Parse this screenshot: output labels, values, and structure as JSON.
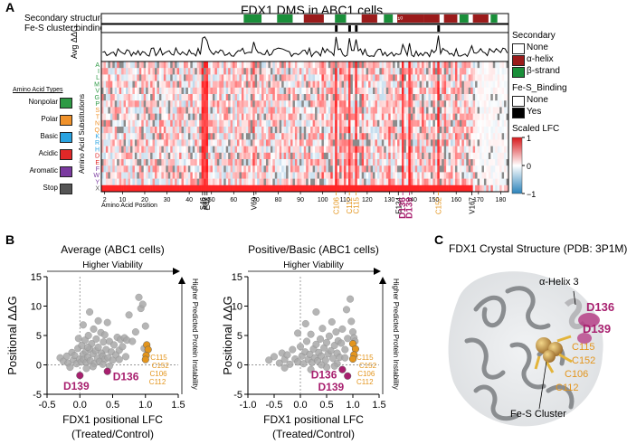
{
  "panels": {
    "a": "A",
    "b": "B",
    "c": "C"
  },
  "colors": {
    "helix": "#9b1b1b",
    "strand": "#1a8f3a",
    "polar": "#f0922b",
    "basic": "#29a3e0",
    "acidic": "#e02828",
    "aromatic": "#7b3aa0",
    "stop": "#555555",
    "nonpolar": "#2e9a45",
    "magenta": "#a8206f",
    "orange": "#e3951d",
    "grey_point": "#a9a9a9"
  },
  "panel_a": {
    "title": "FDX1 DMS in ABC1 cells",
    "track_secondary": "Secondary structure",
    "track_fes": "Fe-S cluster binding",
    "avg_label": "Avg ΔΔG",
    "helix_310_label": "3¹⁰",
    "y_axis_label": "Amino Acid Substitutions",
    "x_axis_label": "Amino Acid Position",
    "substitutions": [
      "A",
      "I",
      "L",
      "M",
      "V",
      "G",
      "P",
      "S",
      "T",
      "N",
      "Q",
      "K",
      "R",
      "H",
      "D",
      "E",
      "F",
      "W",
      "Y",
      "X"
    ],
    "x_ticks": [
      "2",
      "10",
      "20",
      "30",
      "40",
      "50",
      "60",
      "70",
      "80",
      "90",
      "100",
      "110",
      "120",
      "130",
      "140",
      "150",
      "160",
      "170",
      "180"
    ],
    "position_labels": [
      {
        "text": "S46",
        "group": "black"
      },
      {
        "text": "A47",
        "group": "black"
      },
      {
        "text": "E48",
        "group": "black"
      },
      {
        "text": "V69",
        "group": "black"
      },
      {
        "text": "C106",
        "group": "orange"
      },
      {
        "text": "C112",
        "group": "orange"
      },
      {
        "text": "C115",
        "group": "orange"
      },
      {
        "text": "E134",
        "group": "black"
      },
      {
        "text": "D136",
        "group": "magenta"
      },
      {
        "text": "D139",
        "group": "magenta"
      },
      {
        "text": "C152",
        "group": "orange"
      },
      {
        "text": "V167",
        "group": "black"
      }
    ],
    "aa_types_title": "Amino Acid Types",
    "aa_types": [
      "Nonpolar",
      "Polar",
      "Basic",
      "Acidic",
      "Aromatic",
      "Stop"
    ],
    "legend_secondary": {
      "title": "Secondary",
      "items": [
        "None",
        "α-helix",
        "β-strand"
      ]
    },
    "legend_fes": {
      "title": "Fe-S_Binding",
      "items": [
        "None",
        "Yes"
      ]
    },
    "legend_lfc": {
      "title": "Scaled LFC",
      "ticks": [
        "1",
        "0",
        "−1"
      ]
    }
  },
  "panel_b": {
    "y_label": "Positional ΔΔG",
    "x_label_line1": "FDX1 positional LFC",
    "x_label_line2": "(Treated/Control)",
    "viability_label": "Higher Viability",
    "instability_label": "Higher Predicted Protein Instability"
  },
  "panel_c": {
    "title": "FDX1 Crystal Structure (PDB: 3P1M)",
    "helix_label": "α-Helix 3",
    "cluster_label": "Fe-S Cluster",
    "magenta_labels": [
      "D136",
      "D139"
    ],
    "orange_labels": [
      "C115",
      "C152",
      "C106",
      "C112"
    ]
  },
  "chart_data": [
    {
      "type": "scatter",
      "title": "Average (ABC1 cells)",
      "xlabel": "FDX1 positional LFC (Treated/Control)",
      "ylabel": "Positional ΔΔG",
      "xlim": [
        -0.5,
        1.5
      ],
      "ylim": [
        -5,
        15
      ],
      "x_ticks": [
        "-0.5",
        "0.0",
        "0.5",
        "1.0",
        "1.5"
      ],
      "y_ticks": [
        "-5",
        "0",
        "5",
        "10",
        "15"
      ],
      "background_points": [
        [
          -0.3,
          1.2
        ],
        [
          -0.25,
          0.6
        ],
        [
          -0.2,
          1.5
        ],
        [
          -0.18,
          0.3
        ],
        [
          -0.12,
          2.1
        ],
        [
          -0.1,
          0.8
        ],
        [
          -0.08,
          1.6
        ],
        [
          -0.05,
          0.2
        ],
        [
          -0.03,
          2.8
        ],
        [
          0.0,
          1.0
        ],
        [
          0.02,
          0.5
        ],
        [
          0.03,
          3.3
        ],
        [
          0.05,
          1.8
        ],
        [
          0.06,
          0.9
        ],
        [
          0.08,
          4.2
        ],
        [
          0.09,
          2.3
        ],
        [
          0.1,
          0.4
        ],
        [
          0.12,
          1.3
        ],
        [
          0.13,
          5.0
        ],
        [
          0.15,
          2.7
        ],
        [
          0.16,
          0.7
        ],
        [
          0.18,
          3.6
        ],
        [
          0.2,
          1.9
        ],
        [
          0.21,
          6.1
        ],
        [
          0.22,
          0.2
        ],
        [
          0.24,
          2.4
        ],
        [
          0.25,
          4.4
        ],
        [
          0.27,
          1.1
        ],
        [
          0.28,
          3.0
        ],
        [
          0.3,
          0.6
        ],
        [
          0.32,
          5.5
        ],
        [
          0.33,
          2.0
        ],
        [
          0.35,
          1.5
        ],
        [
          0.36,
          3.9
        ],
        [
          0.38,
          0.9
        ],
        [
          0.4,
          2.6
        ],
        [
          0.42,
          7.2
        ],
        [
          0.43,
          1.2
        ],
        [
          0.45,
          4.0
        ],
        [
          0.48,
          2.2
        ],
        [
          0.5,
          0.8
        ],
        [
          0.52,
          3.4
        ],
        [
          0.55,
          1.7
        ],
        [
          0.57,
          4.7
        ],
        [
          0.6,
          2.5
        ],
        [
          0.62,
          4.3
        ],
        [
          0.65,
          3.1
        ],
        [
          0.68,
          4.6
        ],
        [
          0.7,
          1.4
        ],
        [
          0.72,
          4.2
        ],
        [
          0.75,
          8.5
        ],
        [
          0.8,
          4.0
        ],
        [
          0.85,
          5.6
        ],
        [
          0.9,
          11.5
        ],
        [
          0.93,
          9.6
        ],
        [
          0.96,
          10.3
        ],
        [
          1.0,
          6.6
        ],
        [
          0.98,
          2.8
        ],
        [
          0.15,
          9.0
        ],
        [
          0.05,
          6.8
        ],
        [
          -0.02,
          4.5
        ],
        [
          0.28,
          7.5
        ],
        [
          0.2,
          -0.3
        ],
        [
          0.1,
          -0.6
        ],
        [
          0.35,
          0.1
        ],
        [
          0.45,
          -0.2
        ],
        [
          -0.15,
          -0.4
        ],
        [
          0.6,
          0.9
        ],
        [
          0.38,
          5.1
        ],
        [
          0.12,
          3.0
        ]
      ],
      "highlight_points": [
        {
          "label": "C115",
          "x": 1.02,
          "y": 3.4,
          "group": "orange"
        },
        {
          "label": "C152",
          "x": 1.04,
          "y": 2.6,
          "group": "orange"
        },
        {
          "label": "C106",
          "x": 1.01,
          "y": 1.6,
          "group": "orange"
        },
        {
          "label": "C112",
          "x": 1.0,
          "y": 0.9,
          "group": "orange"
        },
        {
          "label": "D136",
          "x": 0.42,
          "y": -1.1,
          "group": "magenta"
        },
        {
          "label": "D139",
          "x": 0.0,
          "y": -1.8,
          "group": "magenta"
        }
      ]
    },
    {
      "type": "scatter",
      "title": "Positive/Basic (ABC1 cells)",
      "xlabel": "FDX1 positional LFC (Treated/Control)",
      "ylabel": "Positional ΔΔG",
      "xlim": [
        -1.0,
        1.5
      ],
      "ylim": [
        -5,
        15
      ],
      "x_ticks": [
        "-1.0",
        "-0.5",
        "0.0",
        "0.5",
        "1.0",
        "1.5"
      ],
      "y_ticks": [
        "-5",
        "0",
        "5",
        "10",
        "15"
      ],
      "background_points": [
        [
          -0.6,
          0.8
        ],
        [
          -0.5,
          1.4
        ],
        [
          -0.4,
          0.3
        ],
        [
          -0.35,
          2.0
        ],
        [
          -0.3,
          0.9
        ],
        [
          -0.25,
          1.7
        ],
        [
          -0.2,
          0.1
        ],
        [
          -0.15,
          2.6
        ],
        [
          -0.1,
          1.0
        ],
        [
          -0.05,
          0.5
        ],
        [
          0.0,
          3.1
        ],
        [
          0.03,
          1.5
        ],
        [
          0.06,
          0.2
        ],
        [
          0.09,
          2.2
        ],
        [
          0.12,
          4.0
        ],
        [
          0.15,
          0.9
        ],
        [
          0.18,
          1.8
        ],
        [
          0.2,
          5.2
        ],
        [
          0.22,
          0.4
        ],
        [
          0.25,
          2.7
        ],
        [
          0.28,
          1.2
        ],
        [
          0.3,
          3.5
        ],
        [
          0.33,
          0.7
        ],
        [
          0.35,
          2.1
        ],
        [
          0.38,
          4.4
        ],
        [
          0.4,
          1.5
        ],
        [
          0.42,
          6.2
        ],
        [
          0.45,
          2.9
        ],
        [
          0.48,
          0.8
        ],
        [
          0.5,
          3.8
        ],
        [
          0.53,
          1.9
        ],
        [
          0.55,
          4.9
        ],
        [
          0.58,
          2.4
        ],
        [
          0.6,
          7.3
        ],
        [
          0.62,
          1.1
        ],
        [
          0.65,
          3.3
        ],
        [
          0.68,
          5.6
        ],
        [
          0.7,
          2.0
        ],
        [
          0.72,
          4.1
        ],
        [
          0.75,
          1.3
        ],
        [
          0.78,
          3.7
        ],
        [
          0.8,
          6.1
        ],
        [
          0.85,
          2.6
        ],
        [
          0.88,
          9.4
        ],
        [
          0.9,
          4.5
        ],
        [
          0.95,
          11.2
        ],
        [
          0.97,
          7.4
        ],
        [
          1.0,
          5.6
        ],
        [
          1.02,
          4.6
        ],
        [
          1.04,
          4.0
        ],
        [
          0.1,
          7.0
        ],
        [
          -0.05,
          5.4
        ],
        [
          0.3,
          9.0
        ],
        [
          0.5,
          -0.4
        ],
        [
          0.2,
          -0.8
        ],
        [
          -0.3,
          -0.5
        ],
        [
          0.7,
          0.2
        ],
        [
          0.4,
          0.0
        ],
        [
          0.85,
          1.2
        ],
        [
          0.65,
          -0.2
        ]
      ],
      "highlight_points": [
        {
          "label": "C115",
          "x": 1.0,
          "y": 3.6,
          "group": "orange"
        },
        {
          "label": "C152",
          "x": 1.05,
          "y": 2.7,
          "group": "orange"
        },
        {
          "label": "C106",
          "x": 1.02,
          "y": 1.7,
          "group": "orange"
        },
        {
          "label": "C112",
          "x": 1.0,
          "y": 1.0,
          "group": "orange"
        },
        {
          "label": "D136",
          "x": 0.8,
          "y": -0.8,
          "group": "magenta"
        },
        {
          "label": "D139",
          "x": 0.9,
          "y": -1.9,
          "group": "magenta"
        }
      ]
    }
  ]
}
